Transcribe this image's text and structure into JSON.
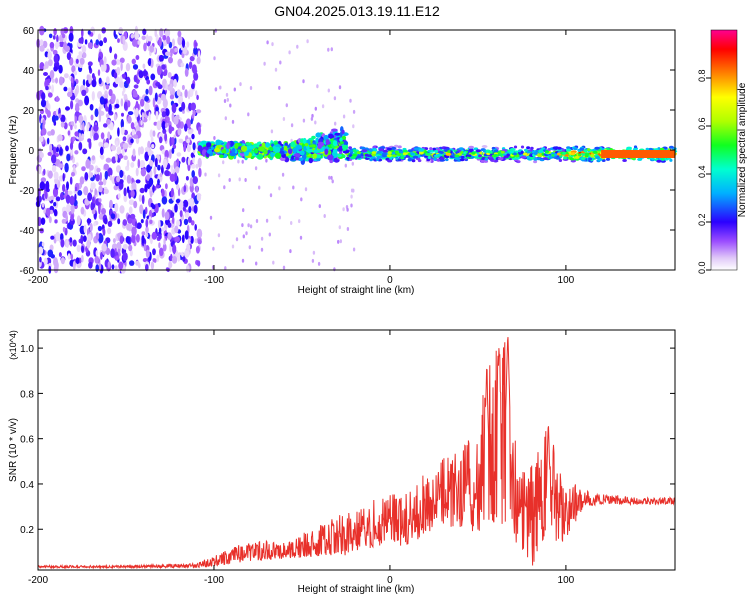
{
  "title": "GN04.2025.013.19.11.E12",
  "chart_data": [
    {
      "type": "heatmap",
      "xlabel": "Height of straight line (km)",
      "ylabel": "Frequency (Hz)",
      "xlim": [
        -200,
        162
      ],
      "ylim": [
        -60,
        60
      ],
      "xticks": [
        -200,
        -100,
        0,
        100
      ],
      "yticks": [
        60,
        40,
        20,
        0,
        -20,
        -40,
        -60
      ],
      "colorbar": {
        "label": "Normalized spectral amplitude",
        "range": [
          0,
          1
        ],
        "ticks": [
          "0.0",
          "0.2",
          "0.4",
          "0.6",
          "0.8"
        ]
      },
      "features": [
        {
          "x_range": [
            -200,
            -108
          ],
          "f_range": [
            -60,
            60
          ],
          "amplitude": 0.2
        },
        {
          "x_range": [
            -108,
            -25
          ],
          "f_range": [
            -15,
            25
          ],
          "amplitude": 0.55
        },
        {
          "x_range": [
            -25,
            162
          ],
          "f_range": [
            -4,
            4
          ],
          "amplitude": 0.75,
          "peak_freq_hz": -2
        }
      ]
    },
    {
      "type": "line",
      "xlabel": "Height of straight line (km)",
      "ylabel": "SNR (10 * v/v)",
      "y_multiplier": "(x10^4)",
      "xlim": [
        -200,
        162
      ],
      "ylim": [
        0.02,
        1.08
      ],
      "xticks": [
        -200,
        -100,
        0,
        100
      ],
      "yticks": [
        "1.0",
        "0.8",
        "0.6",
        "0.4",
        "0.2"
      ],
      "series": [
        {
          "color": "#e8302a",
          "envelope": [
            [
              -200,
              0.03,
              0.04
            ],
            [
              -150,
              0.03,
              0.04
            ],
            [
              -110,
              0.03,
              0.05
            ],
            [
              -95,
              0.04,
              0.1
            ],
            [
              -80,
              0.06,
              0.16
            ],
            [
              -60,
              0.07,
              0.14
            ],
            [
              -40,
              0.08,
              0.22
            ],
            [
              -25,
              0.08,
              0.28
            ],
            [
              -10,
              0.12,
              0.33
            ],
            [
              0,
              0.14,
              0.36
            ],
            [
              10,
              0.12,
              0.36
            ],
            [
              20,
              0.18,
              0.48
            ],
            [
              30,
              0.22,
              0.52
            ],
            [
              40,
              0.2,
              0.54
            ],
            [
              50,
              0.18,
              0.66
            ],
            [
              55,
              0.25,
              0.92
            ],
            [
              60,
              0.2,
              1.02
            ],
            [
              65,
              0.15,
              1.08
            ],
            [
              70,
              0.15,
              0.7
            ],
            [
              75,
              0.1,
              0.45
            ],
            [
              80,
              0.02,
              0.48
            ],
            [
              85,
              0.08,
              0.56
            ],
            [
              90,
              0.25,
              0.69
            ],
            [
              95,
              0.12,
              0.5
            ],
            [
              100,
              0.16,
              0.36
            ],
            [
              105,
              0.22,
              0.4
            ],
            [
              110,
              0.3,
              0.38
            ],
            [
              120,
              0.31,
              0.36
            ],
            [
              140,
              0.31,
              0.34
            ],
            [
              162,
              0.31,
              0.34
            ]
          ],
          "peaks": [
            [
              55,
              0.92
            ],
            [
              62,
              1.02
            ],
            [
              67,
              1.08
            ],
            [
              90,
              0.69
            ]
          ]
        }
      ]
    }
  ]
}
